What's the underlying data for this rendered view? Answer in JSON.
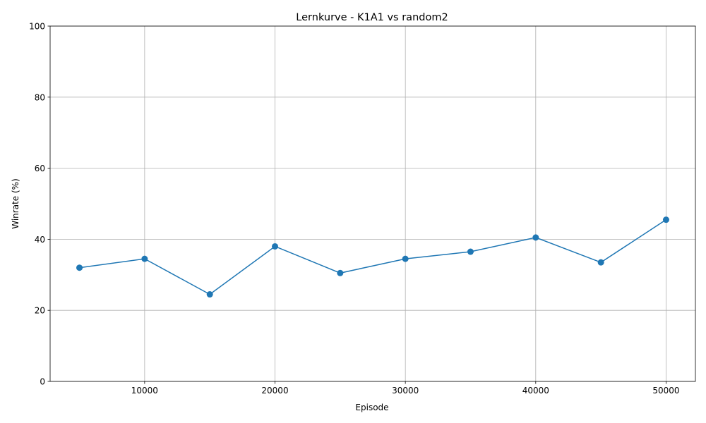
{
  "chart_data": {
    "type": "line",
    "title": "Lernkurve - K1A1 vs random2",
    "xlabel": "Episode",
    "ylabel": "Winrate (%)",
    "x": [
      5000,
      10000,
      15000,
      20000,
      25000,
      30000,
      35000,
      40000,
      45000,
      50000
    ],
    "series": [
      {
        "values": [
          32,
          34.5,
          24.5,
          38,
          30.5,
          34.5,
          36.5,
          40.5,
          33.5,
          45.5
        ]
      }
    ],
    "xlim": [
      2750,
      52250
    ],
    "ylim": [
      0,
      100
    ],
    "xticks": [
      10000,
      20000,
      30000,
      40000,
      50000
    ],
    "yticks": [
      0,
      20,
      40,
      60,
      80,
      100
    ],
    "grid": true,
    "line_color": "#1f77b4",
    "marker": "circle"
  }
}
